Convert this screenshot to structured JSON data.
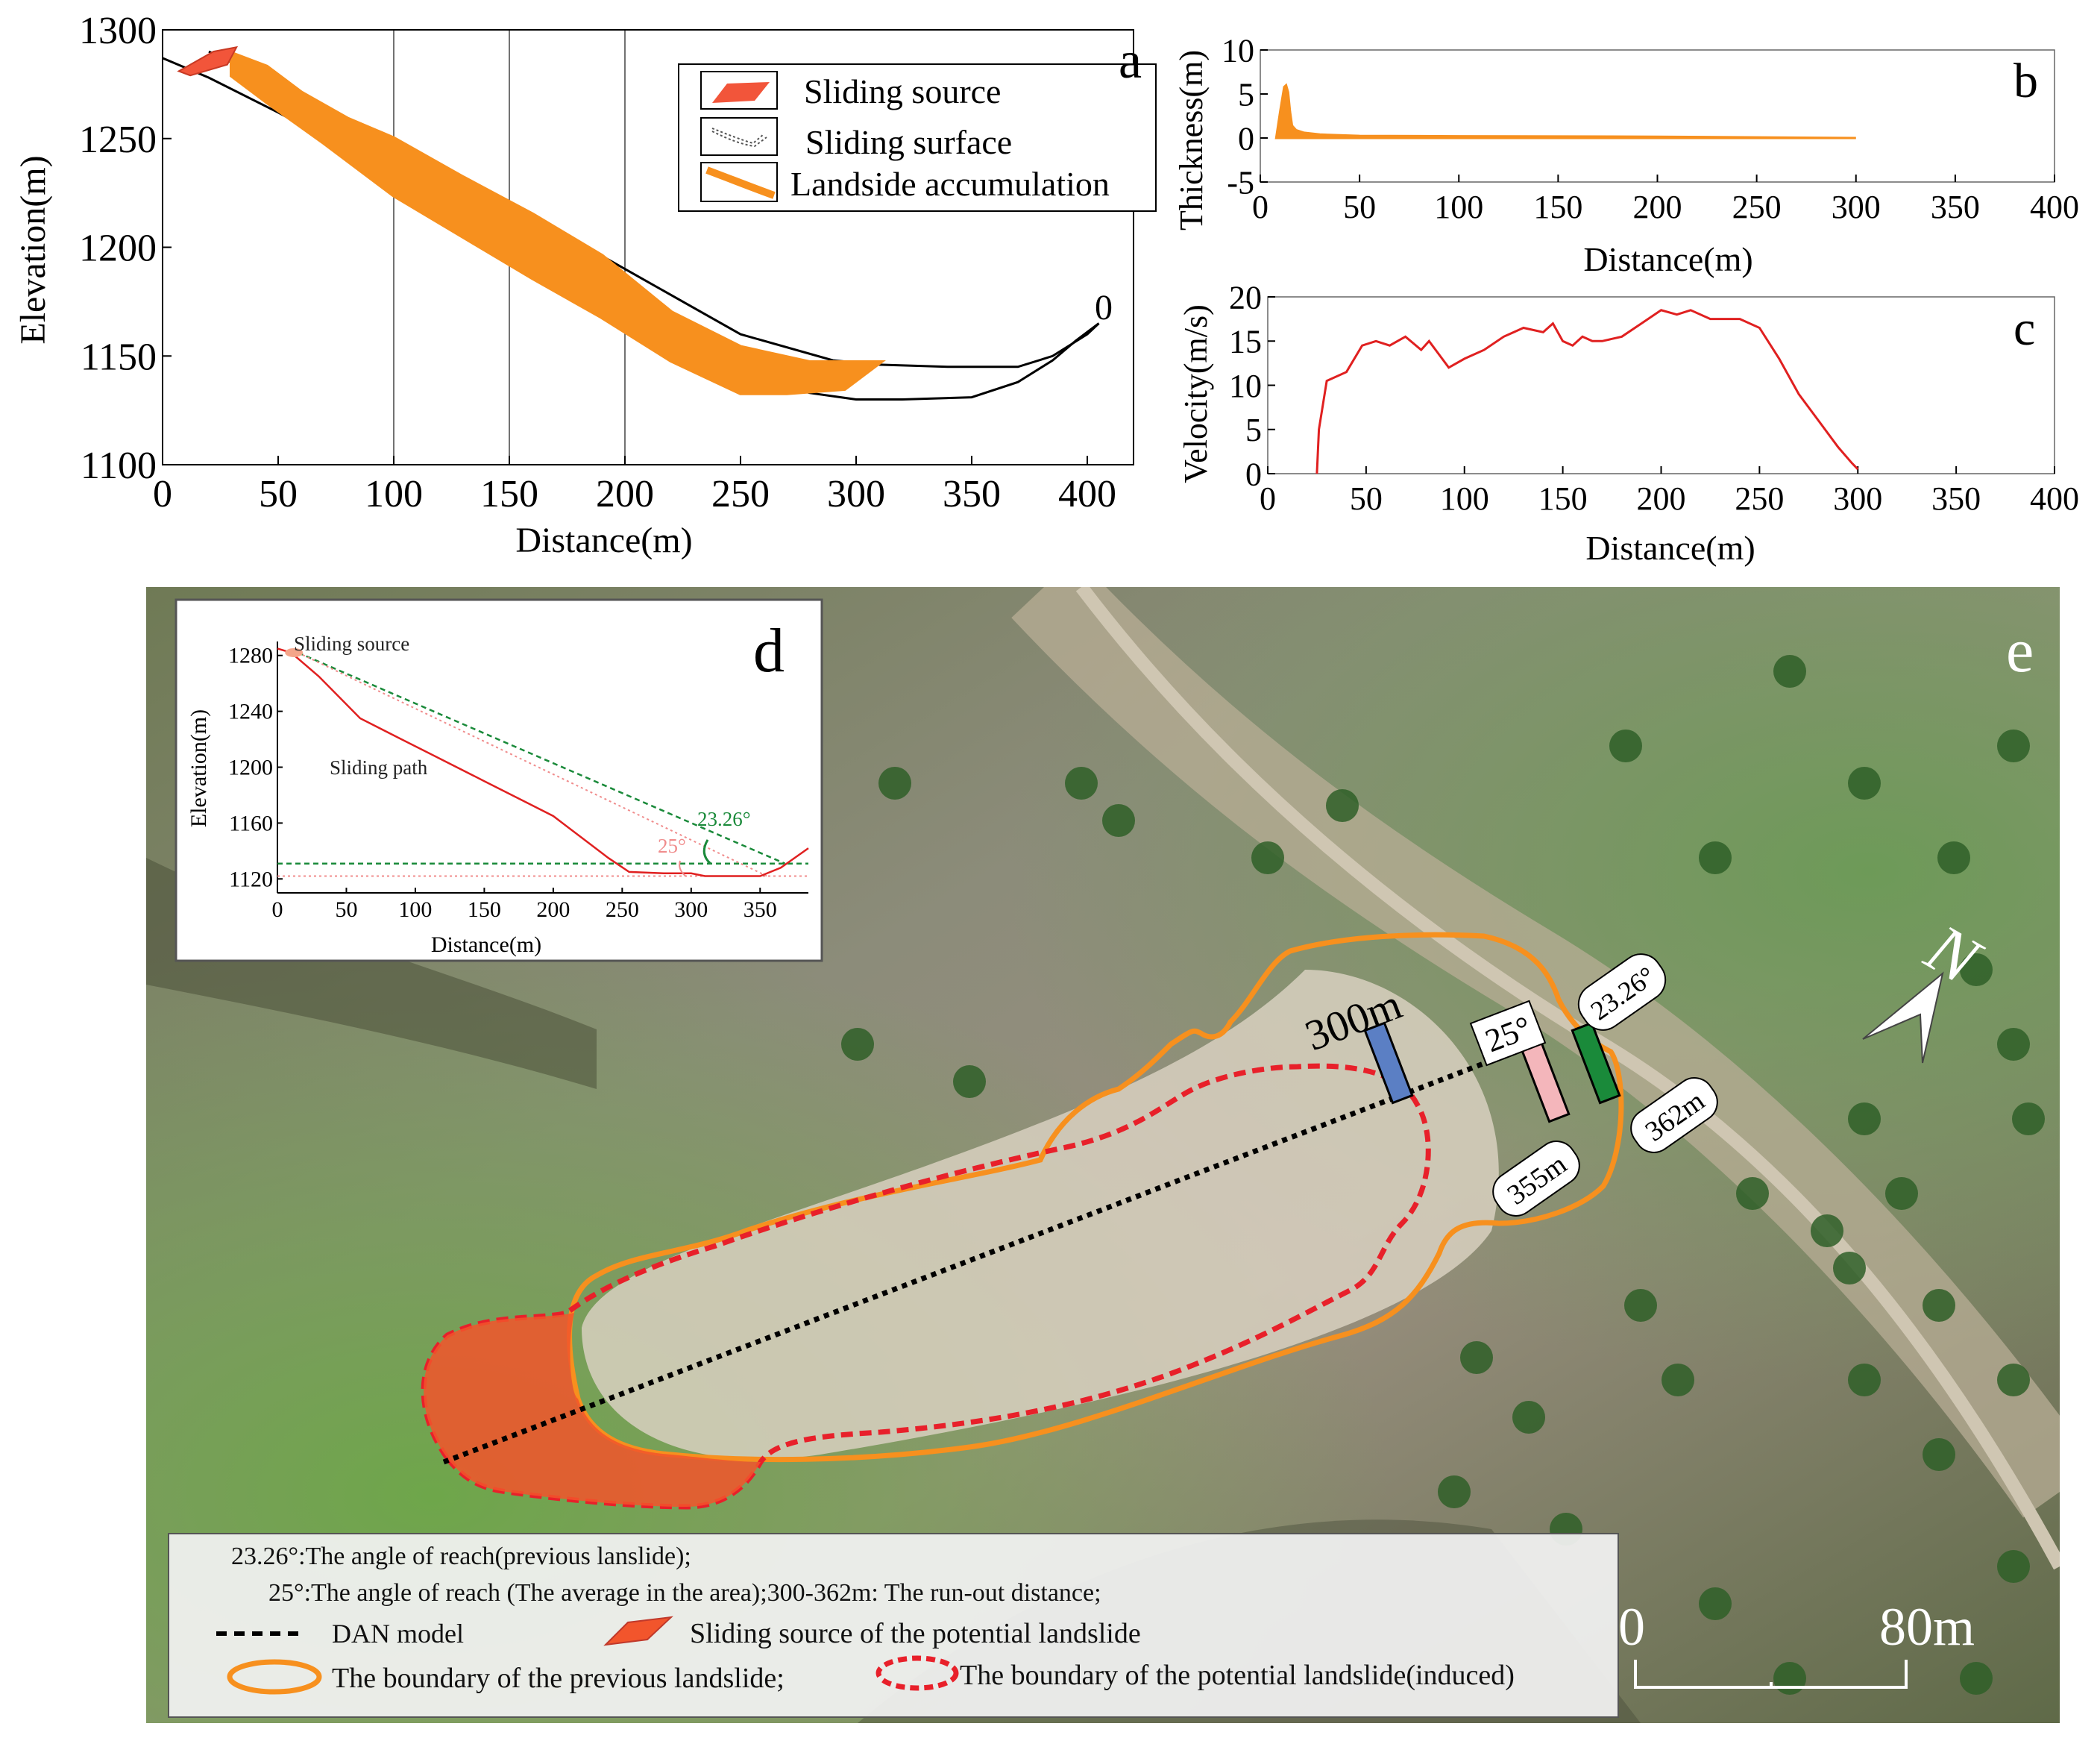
{
  "panel_letters": {
    "a": "a",
    "b": "b",
    "c": "c",
    "d": "d",
    "e": "e"
  },
  "chart_data": [
    {
      "id": "a",
      "type": "area",
      "xlabel": "Distance(m)",
      "ylabel": "Elevation(m)",
      "xlim": [
        0,
        420
      ],
      "ylim": [
        1100,
        1300
      ],
      "xticks": [
        "0",
        "50",
        "100",
        "150",
        "200",
        "250",
        "300",
        "350",
        "400"
      ],
      "yticks": [
        "1100",
        "1150",
        "1200",
        "1250",
        "1300"
      ],
      "grid": "vertical lines at 100, 150, 200",
      "legend_position": "top-right",
      "legend": [
        "Sliding source",
        "Sliding surface",
        "Landside accumulation"
      ],
      "end_label": "0",
      "colors": {
        "source": "#f2553a",
        "accumulation": "#f7901e",
        "surface": "#000000"
      },
      "series": [
        {
          "name": "Sliding surface",
          "x": [
            0,
            20,
            50,
            80,
            110,
            140,
            170,
            200,
            230,
            260,
            280,
            300,
            320,
            350,
            370,
            385,
            395,
            405
          ],
          "y": [
            1287,
            1278,
            1262,
            1245,
            1226,
            1207,
            1188,
            1170,
            1152,
            1138,
            1133,
            1130,
            1130,
            1131,
            1138,
            1148,
            1157,
            1165
          ]
        },
        {
          "name": "Sliding surface (upper line)",
          "x": [
            20,
            60,
            100,
            150,
            200,
            250,
            290,
            310,
            340,
            370,
            385,
            400,
            405
          ],
          "y": [
            1290,
            1270,
            1248,
            1220,
            1190,
            1160,
            1148,
            1146,
            1145,
            1145,
            1150,
            1160,
            1165
          ]
        },
        {
          "name": "Landside accumulation upper",
          "x": [
            30,
            45,
            60,
            80,
            100,
            130,
            160,
            190,
            220,
            250,
            280,
            300,
            310
          ],
          "y": [
            1289,
            1283,
            1271,
            1259,
            1250,
            1232,
            1215,
            1196,
            1170,
            1154,
            1147,
            1147,
            1147
          ]
        },
        {
          "name": "Landside accumulation lower",
          "x": [
            310,
            295,
            270,
            250,
            220,
            190,
            160,
            130,
            100,
            70,
            45,
            30
          ],
          "y": [
            1147,
            1135,
            1133,
            1133,
            1148,
            1168,
            1186,
            1205,
            1224,
            1248,
            1267,
            1279
          ]
        },
        {
          "name": "Sliding source",
          "x": [
            7,
            22,
            32,
            28,
            12,
            7
          ],
          "y": [
            1281,
            1290,
            1292,
            1284,
            1279,
            1281
          ]
        }
      ]
    },
    {
      "id": "b",
      "type": "area",
      "xlabel": "Distance(m)",
      "ylabel": "Thickness(m)",
      "xlim": [
        0,
        400
      ],
      "ylim": [
        -5,
        10
      ],
      "xticks": [
        "0",
        "50",
        "100",
        "150",
        "200",
        "250",
        "300",
        "350",
        "400"
      ],
      "yticks": [
        "-5",
        "0",
        "5",
        "10"
      ],
      "color": "#f7901e",
      "x": [
        8,
        10,
        12,
        13,
        14,
        15,
        16,
        18,
        22,
        30,
        50,
        100,
        200,
        300
      ],
      "y": [
        0,
        3,
        5.8,
        6,
        5.2,
        3,
        1.4,
        0.9,
        0.6,
        0.4,
        0.25,
        0.2,
        0.15,
        0
      ]
    },
    {
      "id": "c",
      "type": "line",
      "xlabel": "Distance(m)",
      "ylabel": "Velocity(m/s)",
      "xlim": [
        0,
        400
      ],
      "ylim": [
        0,
        20
      ],
      "xticks": [
        "0",
        "50",
        "100",
        "150",
        "200",
        "250",
        "300",
        "350",
        "400"
      ],
      "yticks": [
        "0",
        "5",
        "10",
        "15",
        "20"
      ],
      "color": "#e02020",
      "x": [
        25,
        26,
        30,
        40,
        48,
        55,
        62,
        70,
        78,
        82,
        87,
        92,
        100,
        110,
        120,
        130,
        140,
        145,
        150,
        155,
        160,
        165,
        170,
        180,
        190,
        200,
        208,
        215,
        225,
        240,
        250,
        260,
        270,
        280,
        290,
        297,
        300
      ],
      "y": [
        0,
        5,
        10.5,
        11.5,
        14.5,
        15,
        14.5,
        15.5,
        14,
        15,
        13.5,
        12,
        13,
        14,
        15.5,
        16.5,
        16,
        17,
        15,
        14.5,
        15.5,
        15,
        15,
        15.5,
        17,
        18.5,
        18,
        18.5,
        17.5,
        17.5,
        16.5,
        13,
        9,
        6,
        3,
        1.2,
        0.5
      ]
    },
    {
      "id": "d",
      "type": "line",
      "xlabel": "Distance(m)",
      "ylabel": "Elevation(m)",
      "xlim": [
        0,
        385
      ],
      "ylim": [
        1110,
        1290
      ],
      "xticks": [
        "0",
        "50",
        "100",
        "150",
        "200",
        "250",
        "300",
        "350"
      ],
      "yticks": [
        "1120",
        "1160",
        "1200",
        "1240",
        "1280"
      ],
      "annotations": {
        "source": "Sliding source",
        "path": "Sliding path",
        "angle_green": "23.26°",
        "angle_pink": "25°"
      },
      "series": [
        {
          "name": "Sliding path",
          "x": [
            0,
            10,
            30,
            60,
            90,
            120,
            150,
            180,
            200,
            220,
            240,
            255,
            280,
            300,
            310,
            330,
            350,
            365,
            385
          ],
          "y": [
            1285,
            1282,
            1265,
            1235,
            1220,
            1205,
            1190,
            1175,
            1165,
            1150,
            1135,
            1125,
            1124,
            1124,
            1122,
            1122,
            1122,
            1128,
            1142
          ]
        },
        {
          "name": "Angle of reach 23.26° line",
          "x": [
            15,
            368
          ],
          "y": [
            1282,
            1131
          ]
        },
        {
          "name": "Angle of reach 25° line",
          "x": [
            15,
            355
          ],
          "y": [
            1282,
            1122
          ]
        },
        {
          "name": "Horizontal 23.26° level",
          "x": [
            0,
            385
          ],
          "y": [
            1131,
            1131
          ]
        },
        {
          "name": "Horizontal 25° level",
          "x": [
            0,
            385
          ],
          "y": [
            1122,
            1122
          ]
        }
      ]
    }
  ],
  "map_e": {
    "labels": {
      "d300": "300m",
      "d355": "355m",
      "d362": "362m",
      "a25": "25°",
      "a2326": "23.26°",
      "north": "N"
    },
    "scale": {
      "zero": "0",
      "end": "80m"
    },
    "legend": {
      "line1": "23.26°:The  angle of reach(previous lanslide);",
      "line2": "25°:The  angle of reach (The average in the area);300-362m: The run-out distance;",
      "dan": "DAN model",
      "source": "Sliding source of the potential landslide",
      "previous": "The boundary of the previous landslide;",
      "potential": "The boundary of the potential landslide(induced)"
    },
    "colors": {
      "previous": "#f7901e",
      "potential": "#e8202a",
      "source_fill": "#f2552c",
      "marker_300": "#5b7fc4",
      "marker_355": "#f4b6bb",
      "marker_362": "#1a8a3a"
    }
  }
}
